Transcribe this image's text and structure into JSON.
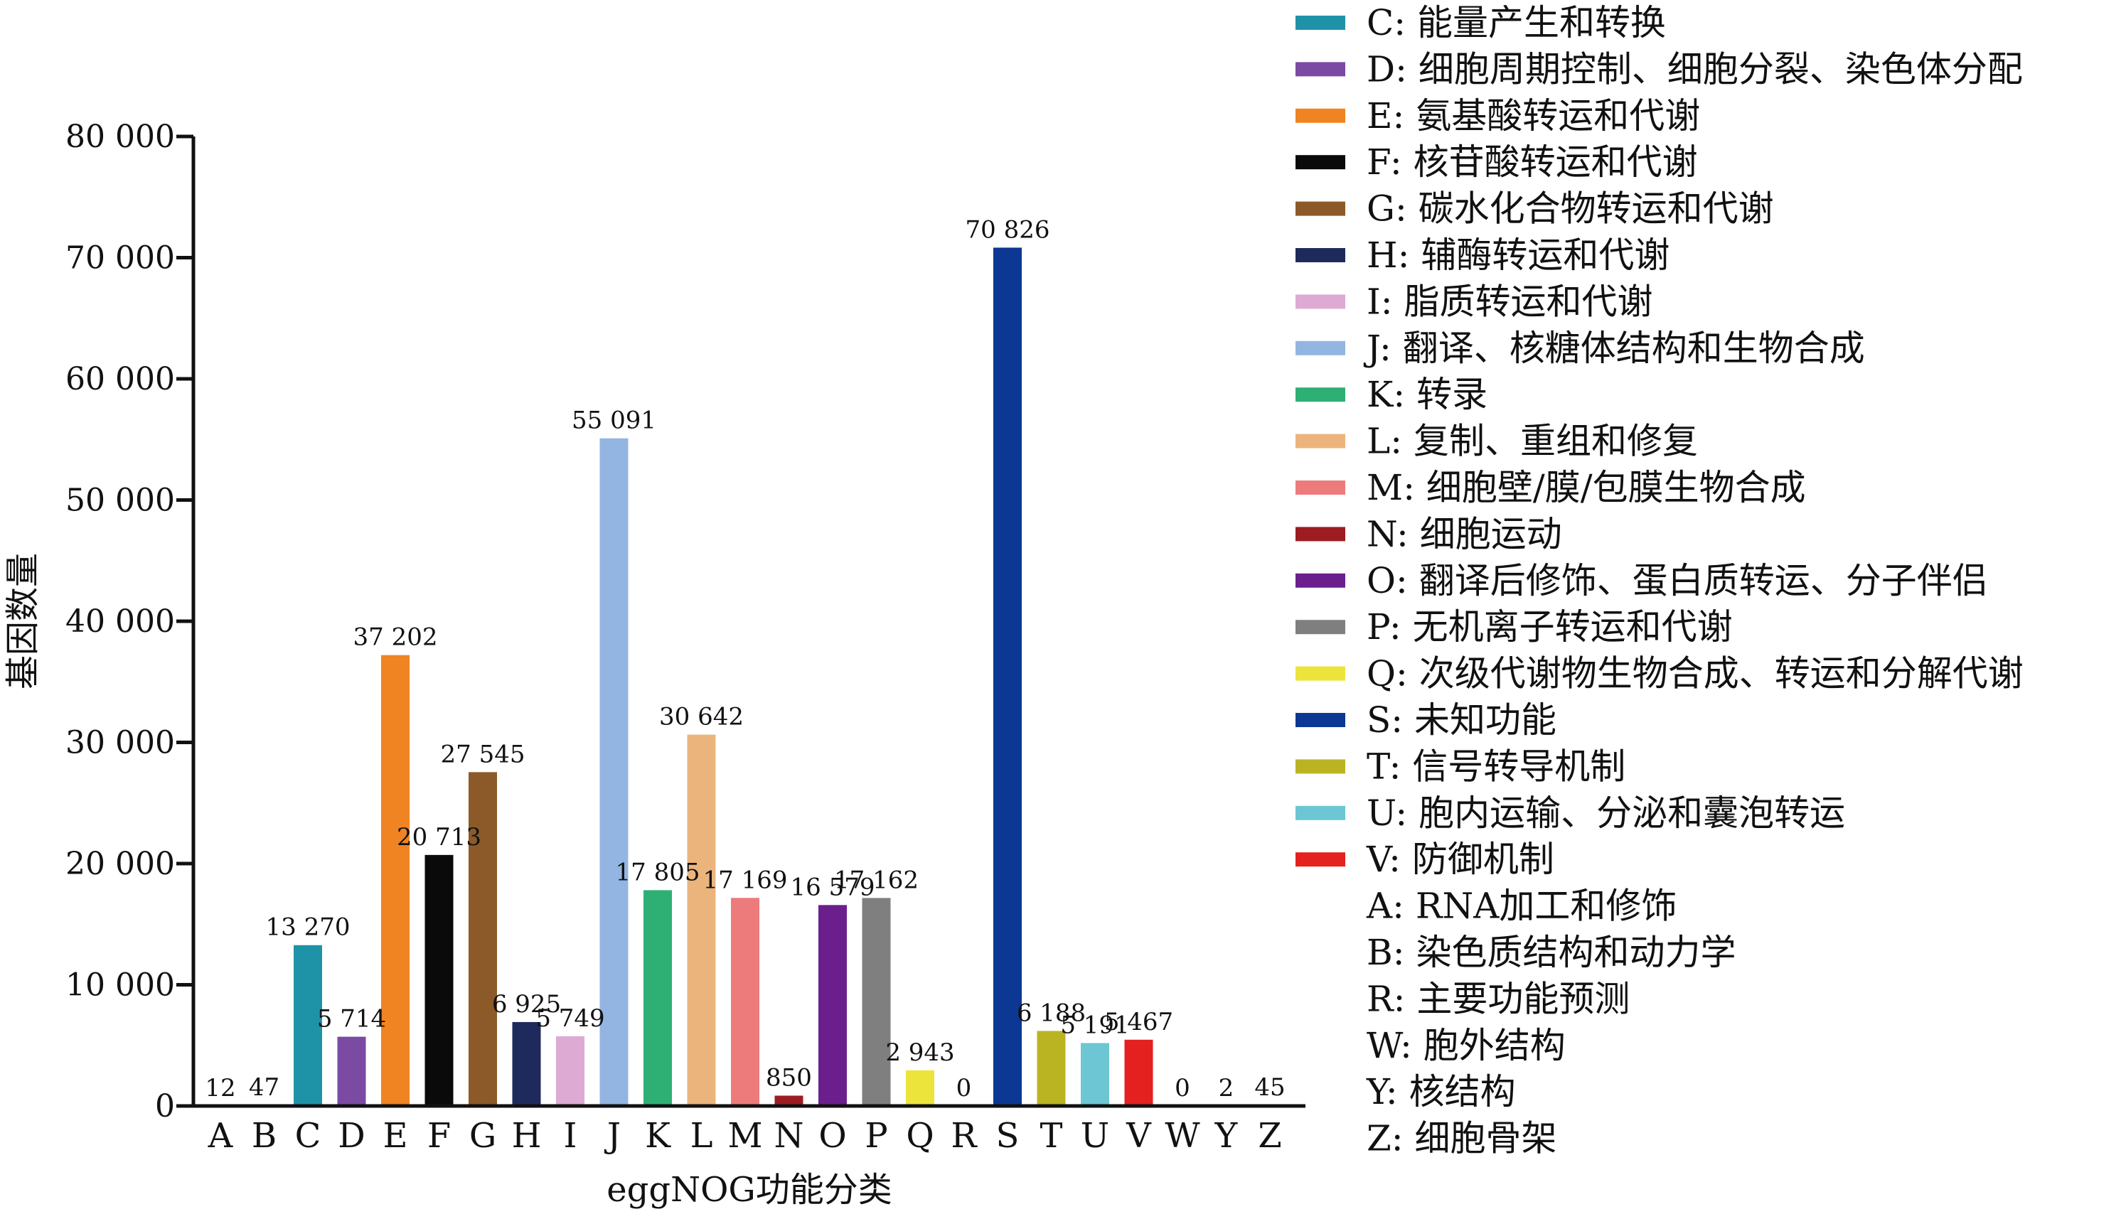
{
  "chart_data": {
    "type": "bar",
    "xlabel": "eggNOG功能分类",
    "ylabel": "基因数量",
    "ylim": [
      0,
      80000
    ],
    "yticks": [
      0,
      10000,
      20000,
      30000,
      40000,
      50000,
      60000,
      70000,
      80000
    ],
    "ytick_labels": [
      "0",
      "10 000",
      "20 000",
      "30 000",
      "40 000",
      "50 000",
      "60 000",
      "70 000",
      "80 000"
    ],
    "grid": false,
    "legend_position": "right",
    "categories": [
      "A",
      "B",
      "C",
      "D",
      "E",
      "F",
      "G",
      "H",
      "I",
      "J",
      "K",
      "L",
      "M",
      "N",
      "O",
      "P",
      "Q",
      "R",
      "S",
      "T",
      "U",
      "V",
      "W",
      "Y",
      "Z"
    ],
    "values": [
      12,
      47,
      13270,
      5714,
      37202,
      20713,
      27545,
      6925,
      5749,
      55091,
      17805,
      30642,
      17169,
      850,
      16579,
      17162,
      2943,
      0,
      70826,
      6188,
      5191,
      5467,
      0,
      2,
      45
    ],
    "value_labels": [
      "12",
      "47",
      "13 270",
      "5 714",
      "37 202",
      "20 713",
      "27 545",
      "6 925",
      "5 749",
      "55 091",
      "17 805",
      "30 642",
      "17 169",
      "850",
      "16 579",
      "17 162",
      "2 943",
      "0",
      "70 826",
      "6 188",
      "5 191",
      "5 467",
      "0",
      "2",
      "45"
    ],
    "colors": [
      "#ffffff",
      "#ffffff",
      "#1e93a8",
      "#7b4ba3",
      "#f08322",
      "#0a0a0a",
      "#8c5a28",
      "#1f2a5c",
      "#ddaad3",
      "#93b5e1",
      "#2eb074",
      "#ecb47d",
      "#ee7b7c",
      "#9c1c22",
      "#6b1f8c",
      "#7f7f7f",
      "#ece43a",
      "#ffffff",
      "#0c3793",
      "#bab423",
      "#6dc6d3",
      "#e4211f",
      "#ffffff",
      "#ffffff",
      "#ffffff"
    ],
    "legend": [
      {
        "label": "C: 能量产生和转换",
        "color": "#1e93a8"
      },
      {
        "label": "D: 细胞周期控制、细胞分裂、染色体分配",
        "color": "#7b4ba3"
      },
      {
        "label": "E: 氨基酸转运和代谢",
        "color": "#f08322"
      },
      {
        "label": "F: 核苷酸转运和代谢",
        "color": "#0a0a0a"
      },
      {
        "label": "G: 碳水化合物转运和代谢",
        "color": "#8c5a28"
      },
      {
        "label": "H: 辅酶转运和代谢",
        "color": "#1f2a5c"
      },
      {
        "label": "I: 脂质转运和代谢",
        "color": "#ddaad3"
      },
      {
        "label": "J: 翻译、核糖体结构和生物合成",
        "color": "#93b5e1"
      },
      {
        "label": "K: 转录",
        "color": "#2eb074"
      },
      {
        "label": "L: 复制、重组和修复",
        "color": "#ecb47d"
      },
      {
        "label": "M: 细胞壁/膜/包膜生物合成",
        "color": "#ee7b7c"
      },
      {
        "label": "N: 细胞运动",
        "color": "#9c1c22"
      },
      {
        "label": "O: 翻译后修饰、蛋白质转运、分子伴侣",
        "color": "#6b1f8c"
      },
      {
        "label": "P: 无机离子转运和代谢",
        "color": "#7f7f7f"
      },
      {
        "label": "Q: 次级代谢物生物合成、转运和分解代谢",
        "color": "#ece43a"
      },
      {
        "label": "S: 未知功能",
        "color": "#0c3793"
      },
      {
        "label": "T: 信号转导机制",
        "color": "#bab423"
      },
      {
        "label": "U: 胞内运输、分泌和囊泡转运",
        "color": "#6dc6d3"
      },
      {
        "label": "V: 防御机制",
        "color": "#e4211f"
      },
      {
        "label": "A: RNA加工和修饰",
        "color": null
      },
      {
        "label": "B: 染色质结构和动力学",
        "color": null
      },
      {
        "label": "R: 主要功能预测",
        "color": null
      },
      {
        "label": "W: 胞外结构",
        "color": null
      },
      {
        "label": "Y: 核结构",
        "color": null
      },
      {
        "label": "Z: 细胞骨架",
        "color": null
      }
    ]
  }
}
